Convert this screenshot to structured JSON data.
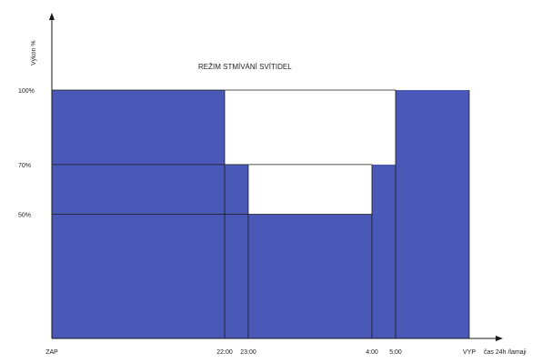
{
  "chart_data": {
    "type": "area",
    "title": "REŽIM STMÍVÁNÍ SVÍTIDEL",
    "ylabel": "Výkon %",
    "xlabel": "čas 24h /lamaji",
    "x_ticks": [
      "ZAP",
      "22:00",
      "23:00",
      "4:00",
      "5:00",
      "VYP"
    ],
    "y_ticks": [
      "100%",
      "70%",
      "50%"
    ],
    "y_tick_values": [
      100,
      70,
      50
    ],
    "ylim": [
      0,
      100
    ],
    "series": [
      {
        "values": [
          100,
          70,
          50,
          70,
          100
        ]
      }
    ],
    "segments": [
      {
        "from": "ZAP",
        "to": "22:00",
        "value": 100
      },
      {
        "from": "22:00",
        "to": "23:00",
        "value": 70
      },
      {
        "from": "23:00",
        "to": "4:00",
        "value": 50
      },
      {
        "from": "4:00",
        "to": "5:00",
        "value": 70
      },
      {
        "from": "5:00",
        "to": "VYP",
        "value": 100
      }
    ],
    "colors": {
      "fill": "#4a58b8",
      "line": "#1a1a1a"
    }
  }
}
